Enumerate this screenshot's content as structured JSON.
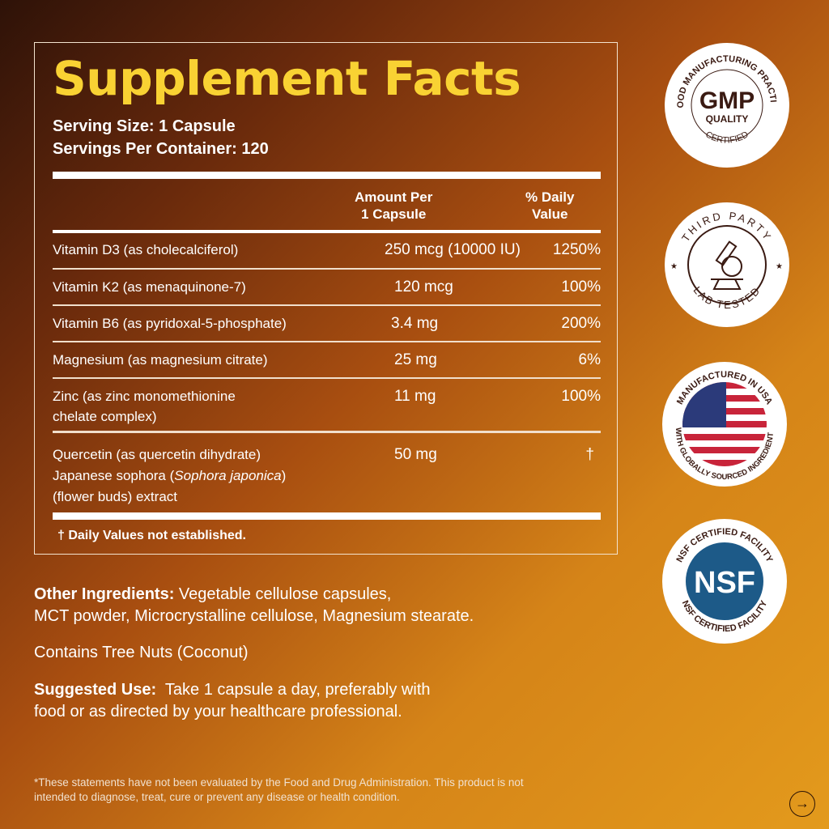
{
  "label": {
    "title": "Supplement Facts",
    "serving_size": "Serving Size: 1 Capsule",
    "servings_per_container": "Servings Per Container: 120",
    "col_amount": [
      "Amount Per",
      "1 Capsule"
    ],
    "col_dv": [
      "% Daily",
      "Value"
    ],
    "rows": [
      {
        "name": [
          "Vitamin D3 (as cholecalciferol)"
        ],
        "amount": "250 mcg (10000 IU)",
        "dv": "1250%"
      },
      {
        "name": [
          "Vitamin K2 (as menaquinone-7)"
        ],
        "amount": "120 mcg",
        "dv": "100%"
      },
      {
        "name": [
          "Vitamin B6 (as pyridoxal-5-phosphate)"
        ],
        "amount": "3.4 mg",
        "dv": "200%"
      },
      {
        "name": [
          "Magnesium (as magnesium citrate)"
        ],
        "amount": "25 mg",
        "dv": "6%"
      },
      {
        "name": [
          "Zinc (as zinc monomethionine",
          "chelate complex)"
        ],
        "amount": "11 mg",
        "dv": "100%"
      },
      {
        "name": [
          "Quercetin (as quercetin dihydrate)",
          "Japanese sophora (",
          "Sophora japonica",
          ")",
          "(flower buds) extract"
        ],
        "amount": "50 mg",
        "dv": "†"
      }
    ],
    "footnote": "† Daily Values not established."
  },
  "other_ingredients": {
    "label": "Other Ingredients:",
    "text1": " Vegetable cellulose capsules,",
    "text2": "MCT powder, Microcrystalline cellulose, Magnesium stearate."
  },
  "allergen": "Contains Tree Nuts (Coconut)",
  "suggested_use": {
    "label": "Suggested Use:",
    "text1": "  Take 1 capsule a day, preferably with",
    "text2": "food or as directed by your healthcare professional."
  },
  "disclaimer": [
    "*These statements have not been evaluated by the Food and Drug Administration. This product is not",
    "intended to diagnose, treat, cure or prevent any disease or health condition."
  ],
  "badges": {
    "gmp": {
      "top": "GOOD MANUFACTURING PRACTICE",
      "main": "GMP",
      "sub": "QUALITY",
      "bottom": "CERTIFIED"
    },
    "lab": {
      "top": "THIRD PARTY",
      "bottom": "LAB TESTED",
      "icon": "microscope-icon"
    },
    "usa": {
      "top": "MANUFACTURED IN USA",
      "bottom": "WITH GLOBALLY SOURCED INGREDIENTS",
      "icon": "us-flag-icon"
    },
    "nsf": {
      "top": "NSF CERTIFIED FACILITY",
      "main": "NSF",
      "bottom": "NSF CERTIFIED FACILITY"
    }
  },
  "colors": {
    "title": "#f9d233",
    "badge_text": "#3a1a12",
    "nsf_blue": "#1d5a88",
    "flag_red": "#c8243a",
    "flag_blue": "#2b3a7a"
  },
  "next_icon": "arrow-right-icon"
}
